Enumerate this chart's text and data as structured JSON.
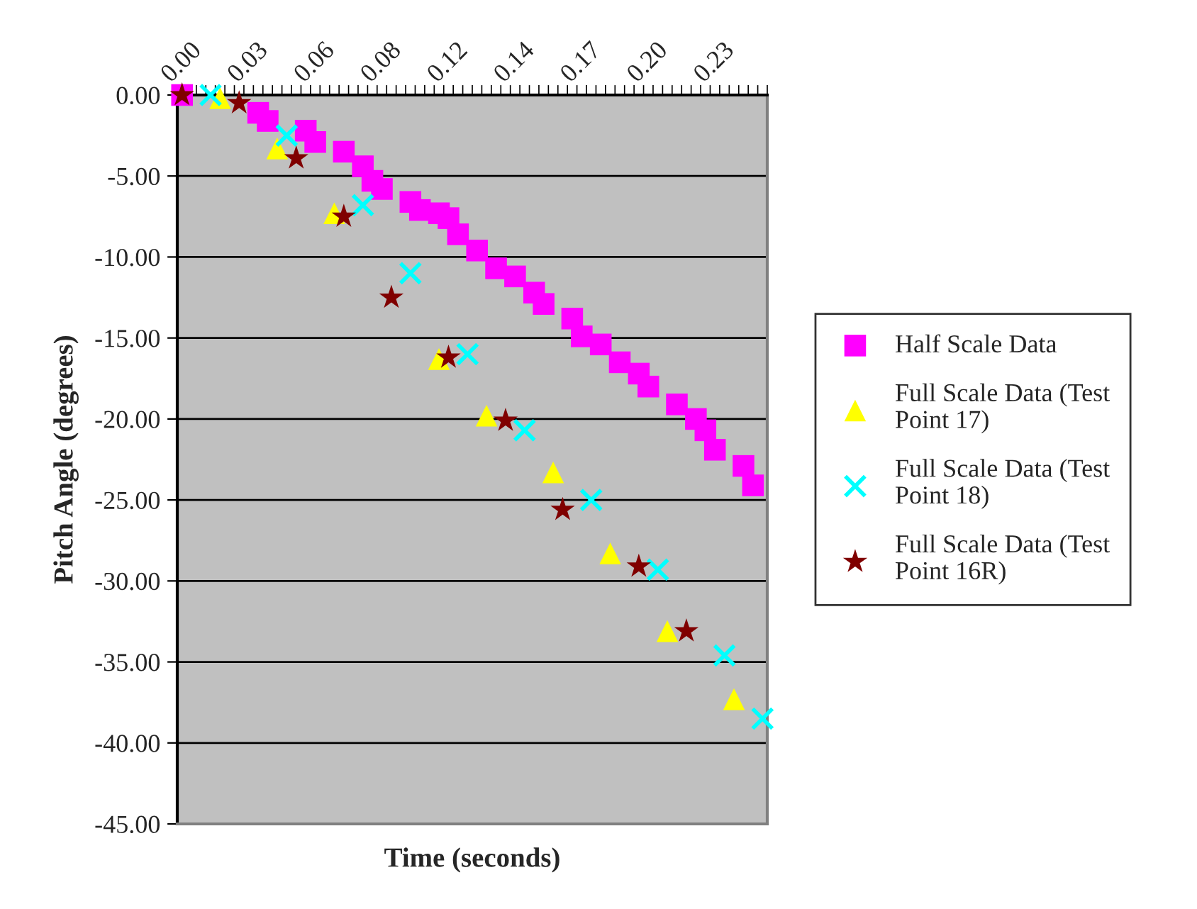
{
  "chart_data": {
    "type": "scatter",
    "xlabel": "Time (seconds)",
    "ylabel": "Pitch Angle (degrees)",
    "categories": [
      "0.00",
      null,
      null,
      null,
      null,
      null,
      null,
      "0.03",
      null,
      null,
      null,
      null,
      null,
      null,
      "0.06",
      null,
      null,
      null,
      null,
      null,
      null,
      "0.08",
      null,
      null,
      null,
      null,
      null,
      null,
      "0.12",
      null,
      null,
      null,
      null,
      null,
      null,
      "0.14",
      null,
      null,
      null,
      null,
      null,
      null,
      "0.17",
      null,
      null,
      null,
      null,
      null,
      null,
      "0.20",
      null,
      null,
      null,
      null,
      null,
      null,
      "0.23",
      null,
      null,
      null,
      null,
      null
    ],
    "series": [
      {
        "name": "Half Scale Data",
        "color": "#ff00ff",
        "marker": "square",
        "values": [
          0.0,
          null,
          null,
          null,
          null,
          null,
          null,
          null,
          -1.1,
          -1.6,
          null,
          null,
          null,
          -2.2,
          -2.9,
          null,
          null,
          -3.5,
          null,
          -4.4,
          -5.3,
          -5.8,
          null,
          null,
          -6.6,
          -7.1,
          null,
          -7.3,
          -7.6,
          -8.6,
          null,
          -9.6,
          null,
          -10.7,
          null,
          -11.2,
          null,
          -12.2,
          -12.9,
          null,
          null,
          -13.8,
          -14.9,
          null,
          -15.4,
          null,
          -16.5,
          null,
          -17.2,
          -18.0,
          null,
          null,
          -19.1,
          null,
          -20.0,
          -20.7,
          -21.9,
          null,
          null,
          -22.9,
          -24.1,
          null
        ]
      },
      {
        "name": "Full Scale Data (Test Point 17)",
        "color": "#ffff00",
        "marker": "triangle",
        "values": [
          null,
          null,
          null,
          null,
          -0.2,
          null,
          null,
          null,
          null,
          null,
          -3.3,
          null,
          null,
          null,
          null,
          null,
          -7.3,
          null,
          null,
          null,
          null,
          null,
          null,
          null,
          null,
          null,
          null,
          -16.3,
          null,
          null,
          null,
          null,
          -19.8,
          null,
          null,
          null,
          null,
          null,
          null,
          -23.3,
          null,
          null,
          null,
          null,
          null,
          -28.3,
          null,
          null,
          null,
          null,
          null,
          -33.1,
          null,
          null,
          null,
          null,
          null,
          null,
          -37.3,
          null,
          null,
          null
        ]
      },
      {
        "name": "Full Scale Data (Test Point 18)",
        "color": "#00ffff",
        "marker": "cross",
        "values": [
          null,
          null,
          null,
          0.0,
          null,
          null,
          null,
          null,
          null,
          null,
          null,
          -2.5,
          null,
          null,
          null,
          null,
          null,
          null,
          null,
          -6.8,
          null,
          null,
          null,
          null,
          -11.0,
          null,
          null,
          null,
          null,
          null,
          -16.0,
          null,
          null,
          null,
          null,
          null,
          -20.7,
          null,
          null,
          null,
          null,
          null,
          null,
          -25.0,
          null,
          null,
          null,
          null,
          null,
          null,
          -29.3,
          null,
          null,
          null,
          null,
          null,
          null,
          -34.6,
          null,
          null,
          null,
          -38.5
        ]
      },
      {
        "name": "Full Scale Data (Test Point 16R)",
        "color": "#800000",
        "marker": "star",
        "values": [
          0.0,
          null,
          null,
          null,
          null,
          null,
          -0.5,
          null,
          null,
          null,
          null,
          null,
          -3.9,
          null,
          null,
          null,
          null,
          -7.5,
          null,
          null,
          null,
          null,
          -12.5,
          null,
          null,
          null,
          null,
          null,
          -16.2,
          null,
          null,
          null,
          null,
          null,
          -20.1,
          null,
          null,
          null,
          null,
          null,
          -25.6,
          null,
          null,
          null,
          null,
          null,
          null,
          null,
          -29.1,
          null,
          null,
          null,
          null,
          -33.1,
          null,
          null,
          null,
          null,
          null,
          null,
          null,
          null
        ]
      }
    ],
    "ylim": [
      -45,
      0
    ],
    "yticks": [
      {
        "value": 0,
        "label": "0.00"
      },
      {
        "value": -5,
        "label": "-5.00"
      },
      {
        "value": -10,
        "label": "-10.00"
      },
      {
        "value": -15,
        "label": "-15.00"
      },
      {
        "value": -20,
        "label": "-20.00"
      },
      {
        "value": -25,
        "label": "-25.00"
      },
      {
        "value": -30,
        "label": "-30.00"
      },
      {
        "value": -35,
        "label": "-35.00"
      },
      {
        "value": -40,
        "label": "-40.00"
      },
      {
        "value": -45,
        "label": "-45.00"
      }
    ],
    "grid": "y",
    "legend": "right"
  }
}
